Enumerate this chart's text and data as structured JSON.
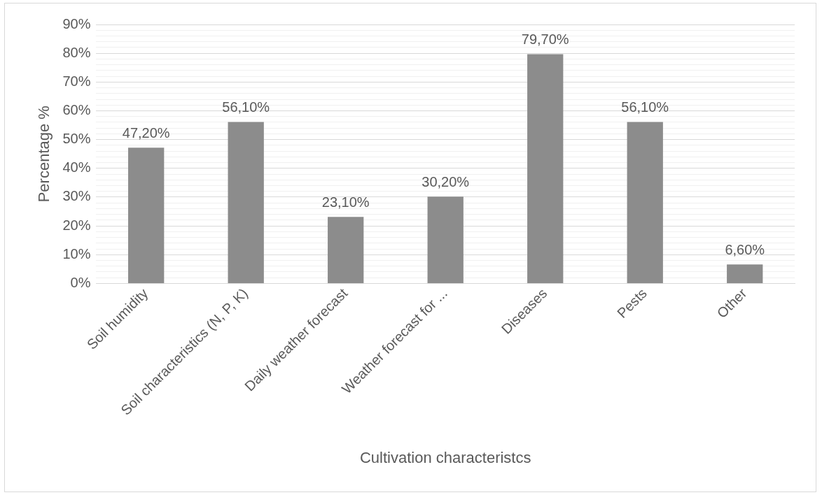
{
  "chart_data": {
    "type": "bar",
    "xlabel": "Cultivation characteristcs",
    "ylabel": "Percentage %",
    "categories": [
      "Soil humidity",
      "Soil characteristics (N, P, K)",
      "Daily weather forecast",
      "Weather forecast for ...",
      "Diseases",
      "Pests",
      "Other"
    ],
    "values": [
      47.2,
      56.1,
      23.1,
      30.2,
      79.7,
      56.1,
      6.6
    ],
    "value_labels": [
      "47,20%",
      "56,10%",
      "23,10%",
      "30,20%",
      "79,70%",
      "56,10%",
      "6,60%"
    ],
    "color": "#8c8c8c",
    "ylim": [
      0,
      90
    ],
    "yticks": [
      {
        "value": 0,
        "label": "0%"
      },
      {
        "value": 2,
        "label": null
      },
      {
        "value": 4,
        "label": null
      },
      {
        "value": 6,
        "label": null
      },
      {
        "value": 8,
        "label": null
      },
      {
        "value": 10,
        "label": "10%"
      },
      {
        "value": 12,
        "label": null
      },
      {
        "value": 14,
        "label": null
      },
      {
        "value": 16,
        "label": null
      },
      {
        "value": 18,
        "label": null
      },
      {
        "value": 20,
        "label": "20%"
      },
      {
        "value": 22,
        "label": null
      },
      {
        "value": 24,
        "label": null
      },
      {
        "value": 26,
        "label": null
      },
      {
        "value": 28,
        "label": null
      },
      {
        "value": 30,
        "label": "30%"
      },
      {
        "value": 32,
        "label": null
      },
      {
        "value": 34,
        "label": null
      },
      {
        "value": 36,
        "label": null
      },
      {
        "value": 38,
        "label": null
      },
      {
        "value": 40,
        "label": "40%"
      },
      {
        "value": 42,
        "label": null
      },
      {
        "value": 44,
        "label": null
      },
      {
        "value": 46,
        "label": null
      },
      {
        "value": 48,
        "label": null
      },
      {
        "value": 50,
        "label": "50%"
      },
      {
        "value": 52,
        "label": null
      },
      {
        "value": 54,
        "label": null
      },
      {
        "value": 56,
        "label": null
      },
      {
        "value": 58,
        "label": null
      },
      {
        "value": 60,
        "label": "60%"
      },
      {
        "value": 62,
        "label": null
      },
      {
        "value": 64,
        "label": null
      },
      {
        "value": 66,
        "label": null
      },
      {
        "value": 68,
        "label": null
      },
      {
        "value": 70,
        "label": "70%"
      },
      {
        "value": 72,
        "label": null
      },
      {
        "value": 74,
        "label": null
      },
      {
        "value": 76,
        "label": null
      },
      {
        "value": 78,
        "label": null
      },
      {
        "value": 80,
        "label": "80%"
      },
      {
        "value": 82,
        "label": null
      },
      {
        "value": 84,
        "label": null
      },
      {
        "value": 86,
        "label": null
      },
      {
        "value": 88,
        "label": null
      },
      {
        "value": 90,
        "label": "90%"
      }
    ],
    "grid": "y",
    "legend": false
  }
}
